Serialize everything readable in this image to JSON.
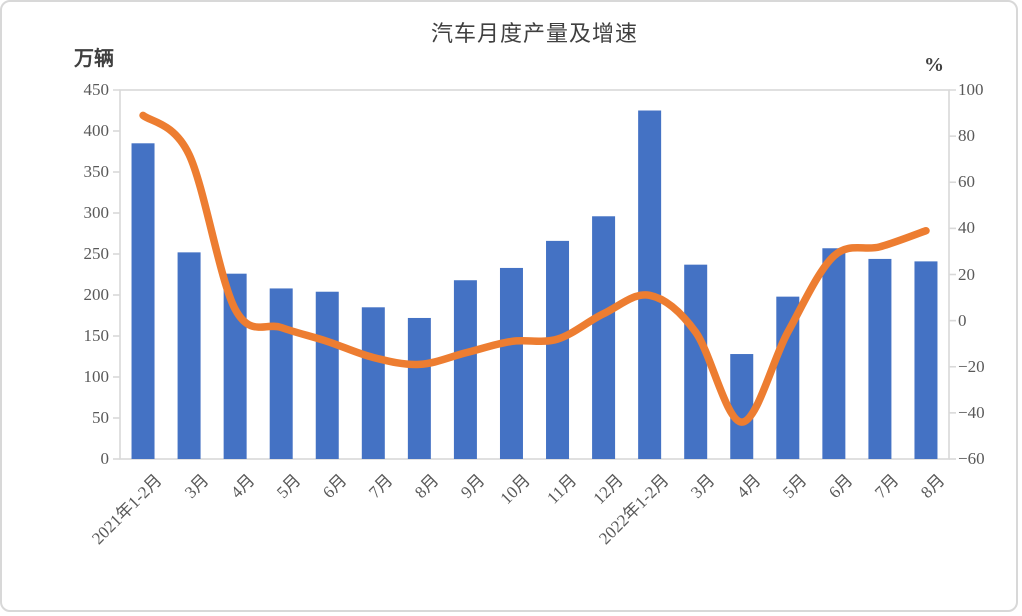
{
  "title": "汽车月度产量及增速",
  "left_axis": {
    "unit": "万辆",
    "min": 0,
    "max": 450,
    "ticks": [
      0,
      50,
      100,
      150,
      200,
      250,
      300,
      350,
      400,
      450
    ]
  },
  "right_axis": {
    "unit": "%",
    "min": -60,
    "max": 100,
    "ticks": [
      -60,
      -40,
      -20,
      0,
      20,
      40,
      60,
      80,
      100
    ]
  },
  "chart_data": {
    "type": "bar",
    "subtype": "bar+line combo, dual axis",
    "title": "汽车月度产量及增速",
    "categories": [
      "2021年1-2月",
      "3月",
      "4月",
      "5月",
      "6月",
      "7月",
      "8月",
      "9月",
      "10月",
      "11月",
      "12月",
      "2022年1-2月",
      "3月",
      "4月",
      "5月",
      "6月",
      "7月",
      "8月"
    ],
    "series": [
      {
        "name": "汽车月度产量(万辆)",
        "type": "bar",
        "axis": "left",
        "color": "#4472C4",
        "values": [
          385,
          252,
          226,
          208,
          204,
          185,
          172,
          218,
          233,
          266,
          296,
          425,
          237,
          128,
          198,
          257,
          244,
          241
        ]
      },
      {
        "name": "增速(%)",
        "type": "line",
        "axis": "right",
        "color": "#ED7D31",
        "values": [
          89,
          72,
          5,
          -3,
          -9,
          -16,
          -19,
          -14,
          -9,
          -8,
          3,
          11,
          -5,
          -44,
          -5,
          28,
          32,
          39
        ]
      }
    ],
    "left_ylim": [
      0,
      450
    ],
    "right_ylim": [
      -60,
      100
    ],
    "grid": false,
    "legend_position": "none",
    "axis_color": "#d9d9d9",
    "label_color": "#595959"
  }
}
